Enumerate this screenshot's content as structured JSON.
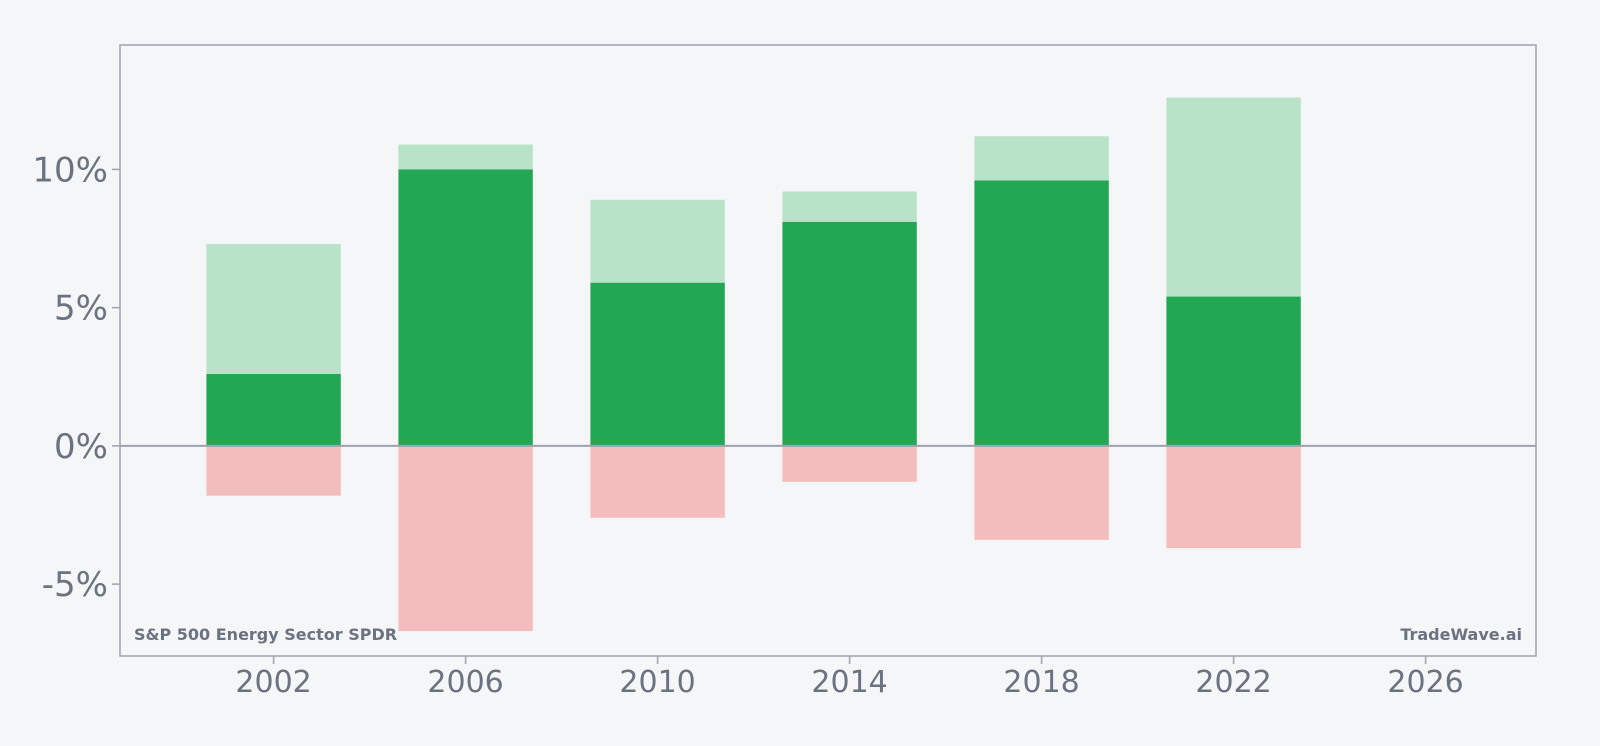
{
  "chart_data": {
    "type": "bar",
    "x": [
      2002,
      2006,
      2010,
      2014,
      2018,
      2022
    ],
    "series": [
      {
        "key": "core",
        "values": [
          2.6,
          10.0,
          5.9,
          8.1,
          9.6,
          5.4
        ]
      },
      {
        "key": "upper",
        "values": [
          7.3,
          10.9,
          8.9,
          9.2,
          11.2,
          12.6
        ]
      },
      {
        "key": "lower",
        "values": [
          -1.8,
          -6.7,
          -2.6,
          -1.3,
          -3.4,
          -3.7
        ]
      }
    ],
    "xlim": [
      1998.8,
      2028.3
    ],
    "ylim": [
      -7.6,
      14.5
    ],
    "x_ticks": [
      2002,
      2006,
      2010,
      2014,
      2018,
      2022,
      2026
    ],
    "x_tick_labels": [
      "2002",
      "2006",
      "2010",
      "2014",
      "2018",
      "2022",
      "2026"
    ],
    "y_ticks": [
      -5,
      0,
      5,
      10
    ],
    "y_tick_labels": [
      "-5%",
      "0%",
      "5%",
      "10%"
    ],
    "bar_width_years": 2.8,
    "colors": {
      "core": "#22a854",
      "upper": "#b9e3c9",
      "lower": "#f4bdbd",
      "axis": "#9ca3af",
      "text": "#6b7280",
      "background": "#f5f6f8"
    },
    "annotations": {
      "left": "S&P 500 Energy Sector SPDR",
      "right": "TradeWave.ai"
    },
    "grid": false,
    "legend": "none"
  }
}
